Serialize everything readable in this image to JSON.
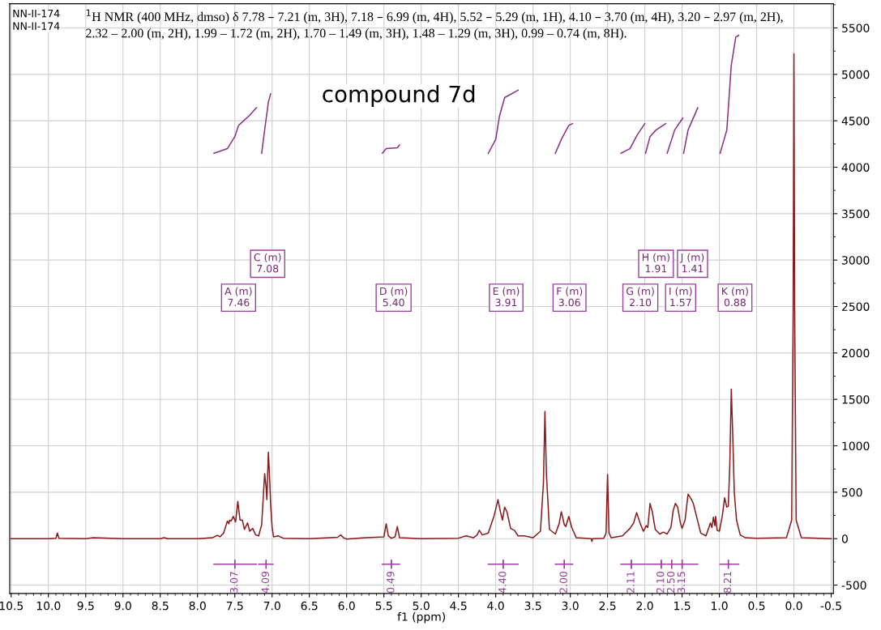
{
  "chart_data": {
    "type": "line",
    "title": "$^{1}$H NMR (400 MHz, dmso) δ 7.78 – 7.21 (m, 3H), 7.18 – 6.99 (m, 4H), 5.52 – 5.29 (m, 1H), 4.10 – 3.70 (m, 4H), 3.20 – 2.97 (m, 2H), 2.32 – 2.00 (m, 2H), 1.99 – 1.72 (m, 2H), 1.70 – 1.49 (m, 3H), 1.48 – 1.29 (m, 3H), 0.99 – 0.74 (m, 8H).",
    "xlabel": "f1 (ppm)",
    "xlim": [
      10.52,
      -0.53
    ],
    "xticks": [
      10.5,
      {
        "value": 10,
        "label": "10.0"
      },
      9.5,
      {
        "value": 9,
        "label": "9.0"
      },
      8.5,
      {
        "value": 8,
        "label": "8.0"
      },
      7.5,
      {
        "value": 7,
        "label": "7.0"
      },
      6.5,
      {
        "value": 6,
        "label": "6.0"
      },
      5.5,
      {
        "value": 5,
        "label": "5.0"
      },
      4.5,
      {
        "value": 4,
        "label": "4.0"
      },
      3.5,
      {
        "value": 3,
        "label": "3.0"
      },
      2.5,
      {
        "value": 2,
        "label": "2.0"
      },
      1.5,
      {
        "value": 1,
        "label": "1.0"
      },
      0.5,
      {
        "value": 0,
        "label": "0.0"
      },
      -0.5
    ],
    "ylim": [
      -590,
      5760
    ],
    "yticks": [
      -500,
      0,
      500,
      1000,
      1500,
      2000,
      2500,
      3000,
      3500,
      4000,
      4500,
      5000,
      5500
    ],
    "grid": true,
    "series": [
      {
        "color": "#8b1a1a",
        "x": [
          10.5,
          10.0,
          9.9,
          9.88,
          9.86,
          9.5,
          9.4,
          9.0,
          8.5,
          8.45,
          8.4,
          8.0,
          7.8,
          7.75,
          7.73,
          7.7,
          7.65,
          7.6,
          7.58,
          7.57,
          7.55,
          7.52,
          7.49,
          7.46,
          7.43,
          7.4,
          7.37,
          7.33,
          7.3,
          7.26,
          7.22,
          7.18,
          7.14,
          7.1,
          7.08,
          7.07,
          7.05,
          7.03,
          7.02,
          7.0,
          6.98,
          6.92,
          6.85,
          6.5,
          6.12,
          6.08,
          6.04,
          6.0,
          5.75,
          5.5,
          5.47,
          5.44,
          5.4,
          5.35,
          5.32,
          5.29,
          5.0,
          4.5,
          4.4,
          4.3,
          4.25,
          4.22,
          4.18,
          4.1,
          4.02,
          3.97,
          3.94,
          3.91,
          3.88,
          3.85,
          3.8,
          3.75,
          3.7,
          3.62,
          3.5,
          3.4,
          3.36,
          3.34,
          3.32,
          3.28,
          3.2,
          3.15,
          3.12,
          3.08,
          3.06,
          3.02,
          2.98,
          2.92,
          2.8,
          2.72,
          2.71,
          2.7,
          2.55,
          2.52,
          2.5,
          2.48,
          2.45,
          2.3,
          2.2,
          2.15,
          2.11,
          2.06,
          2.02,
          1.98,
          1.96,
          1.93,
          1.9,
          1.86,
          1.8,
          1.75,
          1.7,
          1.65,
          1.62,
          1.59,
          1.56,
          1.52,
          1.5,
          1.46,
          1.42,
          1.38,
          1.35,
          1.3,
          1.25,
          1.18,
          1.12,
          1.1,
          1.08,
          1.06,
          1.05,
          1.03,
          1.0,
          0.96,
          0.93,
          0.9,
          0.88,
          0.86,
          0.84,
          0.82,
          0.8,
          0.77,
          0.72,
          0.65,
          0.5,
          0.1,
          0.03,
          0.01,
          0.0,
          -0.01,
          -0.03,
          -0.1,
          -0.5
        ],
        "values": [
          0,
          0,
          5,
          60,
          5,
          0,
          10,
          0,
          0,
          10,
          0,
          0,
          10,
          30,
          35,
          20,
          60,
          190,
          160,
          200,
          190,
          240,
          180,
          400,
          200,
          200,
          100,
          170,
          80,
          110,
          40,
          30,
          150,
          700,
          550,
          420,
          930,
          600,
          380,
          120,
          20,
          30,
          5,
          0,
          15,
          40,
          10,
          -5,
          10,
          20,
          160,
          30,
          5,
          20,
          130,
          10,
          0,
          5,
          30,
          10,
          40,
          90,
          40,
          60,
          250,
          420,
          300,
          200,
          340,
          290,
          110,
          90,
          30,
          30,
          10,
          80,
          600,
          1370,
          700,
          100,
          50,
          160,
          290,
          150,
          130,
          240,
          120,
          10,
          5,
          0,
          -30,
          0,
          5,
          60,
          690,
          60,
          10,
          30,
          110,
          170,
          280,
          160,
          80,
          140,
          120,
          380,
          290,
          100,
          50,
          70,
          50,
          120,
          300,
          380,
          340,
          160,
          110,
          200,
          480,
          430,
          380,
          220,
          60,
          30,
          170,
          120,
          230,
          140,
          240,
          90,
          80,
          250,
          440,
          340,
          350,
          800,
          1610,
          1100,
          500,
          200,
          40,
          10,
          5,
          10,
          200,
          2500,
          5220,
          2500,
          200,
          10,
          0
        ]
      },
      {
        "color": "#8b2f8b",
        "x": [
          7.78,
          7.6,
          7.5,
          7.45,
          7.3,
          7.21,
          7.2,
          7.14,
          7.1,
          7.05,
          7.02,
          6.0,
          5.52,
          5.47,
          5.32,
          5.29,
          5.0,
          4.1,
          4.0,
          3.95,
          3.88,
          3.7,
          3.5,
          3.2,
          3.12,
          3.02,
          2.97,
          2.5,
          2.32,
          2.2,
          2.1,
          2.0,
          1.995,
          1.99,
          1.93,
          1.85,
          1.72,
          1.71,
          1.7,
          1.6,
          1.49,
          1.485,
          1.48,
          1.42,
          1.29,
          1.2,
          0.99,
          0.9,
          0.84,
          0.78,
          0.74
        ],
        "values": [
          4150,
          4200,
          4330,
          4450,
          4560,
          4640,
          null,
          4150,
          4400,
          4700,
          4790,
          null,
          4150,
          4200,
          4210,
          4240,
          null,
          4150,
          4300,
          4550,
          4750,
          4830,
          null,
          4150,
          4300,
          4450,
          4470,
          null,
          4150,
          4200,
          4350,
          4470,
          null,
          4150,
          4330,
          4400,
          4470,
          null,
          4150,
          4400,
          4530,
          null,
          4150,
          4400,
          4640,
          null,
          4150,
          4400,
          5100,
          5400,
          5420
        ]
      },
      {
        "color": "#9b3fa0",
        "x": [
          7.78,
          7.21,
          7.195,
          7.18,
          6.99,
          6.0,
          5.52,
          5.29,
          5.0,
          4.1,
          3.7,
          3.5,
          3.2,
          2.97,
          2.5,
          2.32,
          2.0,
          1.995,
          1.99,
          1.72,
          1.71,
          1.7,
          1.49,
          1.485,
          1.48,
          1.29,
          1.2,
          0.99,
          0.74
        ],
        "values": [
          -275,
          -275,
          null,
          -275,
          -275,
          null,
          -275,
          -275,
          null,
          -275,
          -275,
          null,
          -275,
          -275,
          null,
          -275,
          -275,
          null,
          -275,
          -275,
          null,
          -275,
          -275,
          null,
          -275,
          -275,
          null,
          -275,
          -275
        ]
      }
    ],
    "annotations": [
      "NN-II-174",
      "NN-II-174",
      "compound 7d",
      {
        "text": "A (m)\n7.46",
        "x": 7.45,
        "y": 2595
      },
      {
        "text": "C (m)\n7.08",
        "x": 7.06,
        "y": 2960
      },
      {
        "text": "D (m)\n5.40",
        "x": 5.37,
        "y": 2595
      },
      {
        "text": "E (m)\n3.91",
        "x": 3.86,
        "y": 2595
      },
      {
        "text": "F (m)\n3.06",
        "x": 3.01,
        "y": 2595
      },
      {
        "text": "G (m)\n2.10",
        "x": 2.06,
        "y": 2595
      },
      {
        "text": "H (m)\n1.91",
        "x": 1.85,
        "y": 2960
      },
      {
        "text": "I (m)\n1.57",
        "x": 1.52,
        "y": 2595
      },
      {
        "text": "J (m)\n1.41",
        "x": 1.36,
        "y": 2960
      },
      {
        "text": "K (m)\n0.88",
        "x": 0.79,
        "y": 2595
      },
      {
        "text": "3.07",
        "x": 7.5,
        "y": -275
      },
      {
        "text": "4.09",
        "x": 7.08,
        "y": -275
      },
      {
        "text": "0.49",
        "x": 5.4,
        "y": -275
      },
      {
        "text": "4.40",
        "x": 3.9,
        "y": -275
      },
      {
        "text": "2.00",
        "x": 3.08,
        "y": -275
      },
      {
        "text": "2.11",
        "x": 2.18,
        "y": -275
      },
      {
        "text": "2.10",
        "x": 1.78,
        "y": -275
      },
      {
        "text": "2.50",
        "x": 1.64,
        "y": -275
      },
      {
        "text": "3.15",
        "x": 1.5,
        "y": -275
      },
      {
        "text": "8.21",
        "x": 0.88,
        "y": -275
      }
    ]
  }
}
